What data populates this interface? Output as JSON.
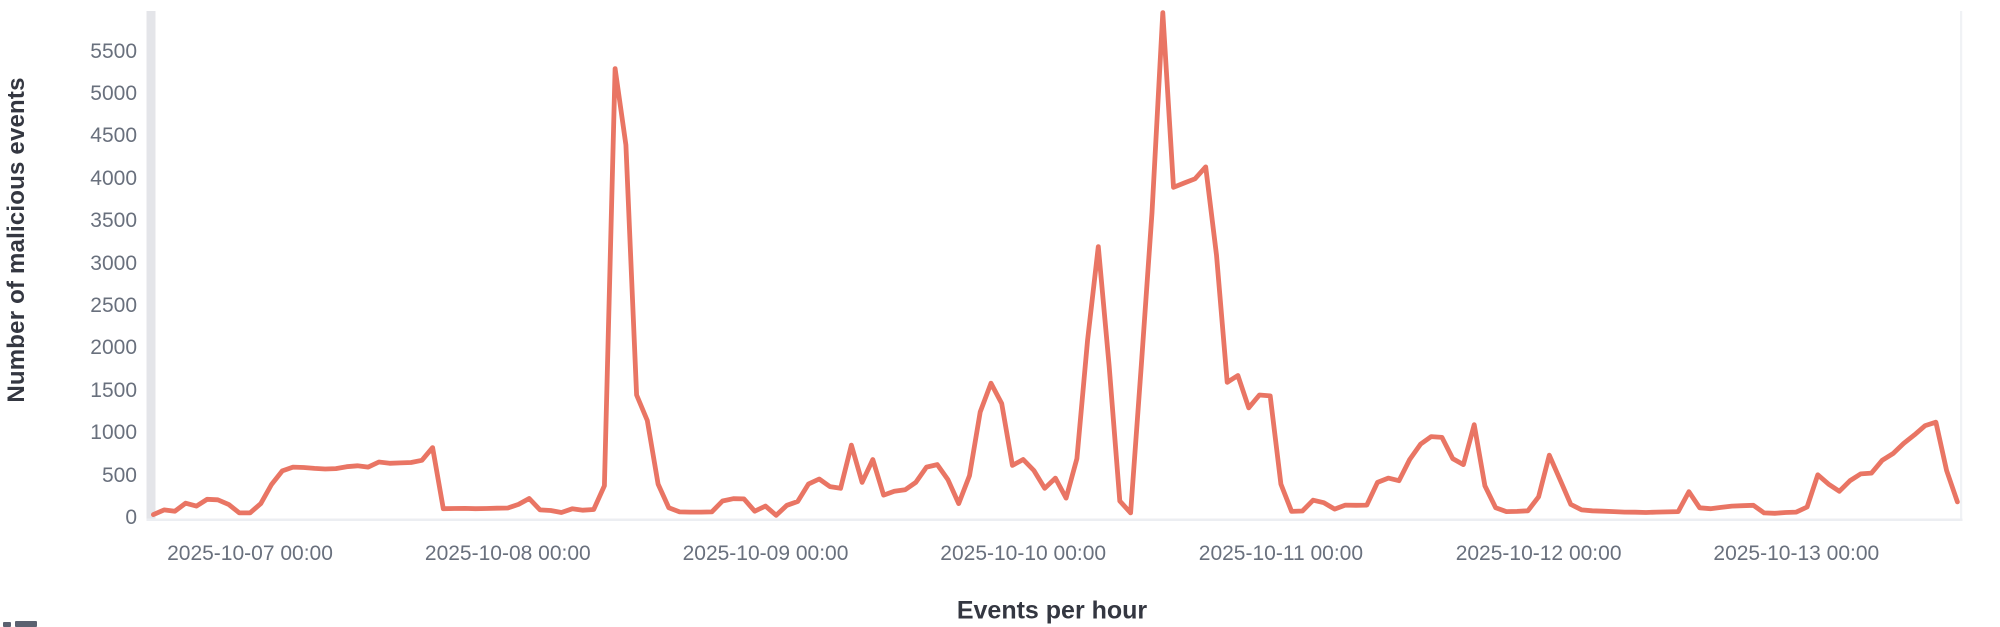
{
  "colors": {
    "line": "#E97564",
    "tick_text": "#69707D",
    "axis_title_text": "#343741",
    "axis_bar": "#e4e5e9",
    "baseline": "#eceef2",
    "right_border": "#f0f2f5"
  },
  "chart_data": {
    "type": "line",
    "title": "Events per hour",
    "xlabel": "Events per hour",
    "ylabel": "Number of malicious events",
    "grid": false,
    "legend": "none",
    "ylim": [
      0,
      6100
    ],
    "y_tick_labels": [
      "0",
      "500",
      "1000",
      "1500",
      "2000",
      "2500",
      "3000",
      "3500",
      "4000",
      "4500",
      "5000",
      "5500"
    ],
    "x_tick_labels": [
      "2025-10-07 00:00",
      "2025-10-08 00:00",
      "2025-10-09 00:00",
      "2025-10-10 00:00",
      "2025-10-11 00:00",
      "2025-10-12 00:00",
      "2025-10-13 00:00"
    ],
    "series": [
      {
        "name": "Events per hour",
        "start": "2025-10-06 15:00",
        "interval_hours": 1,
        "values": [
          40,
          95,
          80,
          175,
          140,
          220,
          215,
          160,
          60,
          60,
          170,
          395,
          555,
          600,
          595,
          585,
          578,
          582,
          605,
          615,
          600,
          660,
          645,
          650,
          655,
          680,
          830,
          110,
          112,
          113,
          110,
          112,
          115,
          118,
          160,
          230,
          95,
          88,
          65,
          108,
          92,
          100,
          380,
          5300,
          4400,
          1450,
          1150,
          400,
          120,
          72,
          70,
          70,
          72,
          200,
          228,
          225,
          80,
          140,
          32,
          150,
          195,
          400,
          460,
          370,
          350,
          860,
          420,
          690,
          270,
          315,
          332,
          420,
          600,
          630,
          450,
          170,
          500,
          1250,
          1590,
          1350,
          620,
          690,
          560,
          350,
          470,
          235,
          700,
          2100,
          3200,
          1800,
          200,
          60,
          1800,
          3600,
          5960,
          3900,
          3950,
          4000,
          4140,
          3100,
          1600,
          1680,
          1300,
          1450,
          1440,
          400,
          78,
          83,
          210,
          180,
          105,
          152,
          150,
          152,
          420,
          470,
          440,
          690,
          870,
          960,
          950,
          700,
          630,
          1100,
          380,
          120,
          75,
          78,
          85,
          250,
          740,
          450,
          160,
          95,
          85,
          80,
          75,
          70,
          68,
          65,
          70,
          72,
          75,
          310,
          120,
          110,
          125,
          140,
          145,
          150,
          60,
          55,
          65,
          70,
          130,
          510,
          400,
          315,
          440,
          520,
          530,
          680,
          760,
          880,
          980,
          1090,
          1130,
          560,
          190
        ]
      }
    ]
  }
}
